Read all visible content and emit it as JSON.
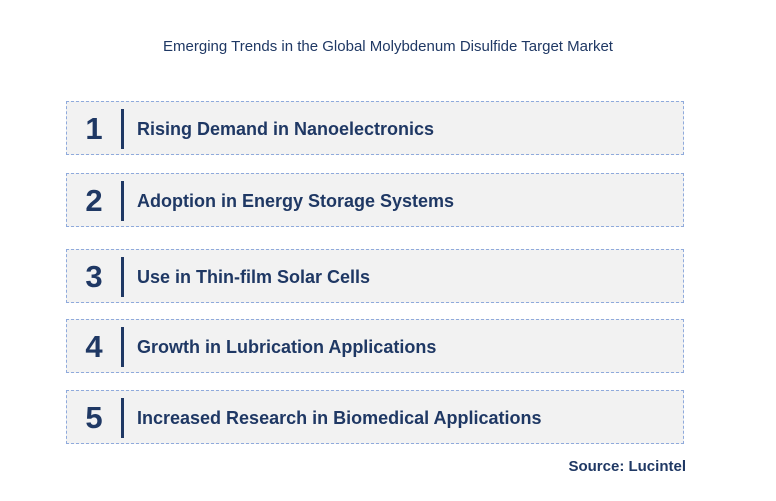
{
  "title": "Emerging Trends in the Global Molybdenum Disulfide Target  Market",
  "items": [
    {
      "number": "1",
      "label": "Rising Demand in Nanoelectronics"
    },
    {
      "number": "2",
      "label": "Adoption in Energy Storage Systems"
    },
    {
      "number": "3",
      "label": "Use in Thin-film Solar Cells"
    },
    {
      "number": "4",
      "label": "Growth in Lubrication Applications"
    },
    {
      "number": "5",
      "label": "Increased Research in Biomedical Applications"
    }
  ],
  "source": "Source: Lucintel",
  "colors": {
    "text": "#1f3864",
    "box_fill": "#f2f2f2",
    "box_border": "#8faadc"
  }
}
